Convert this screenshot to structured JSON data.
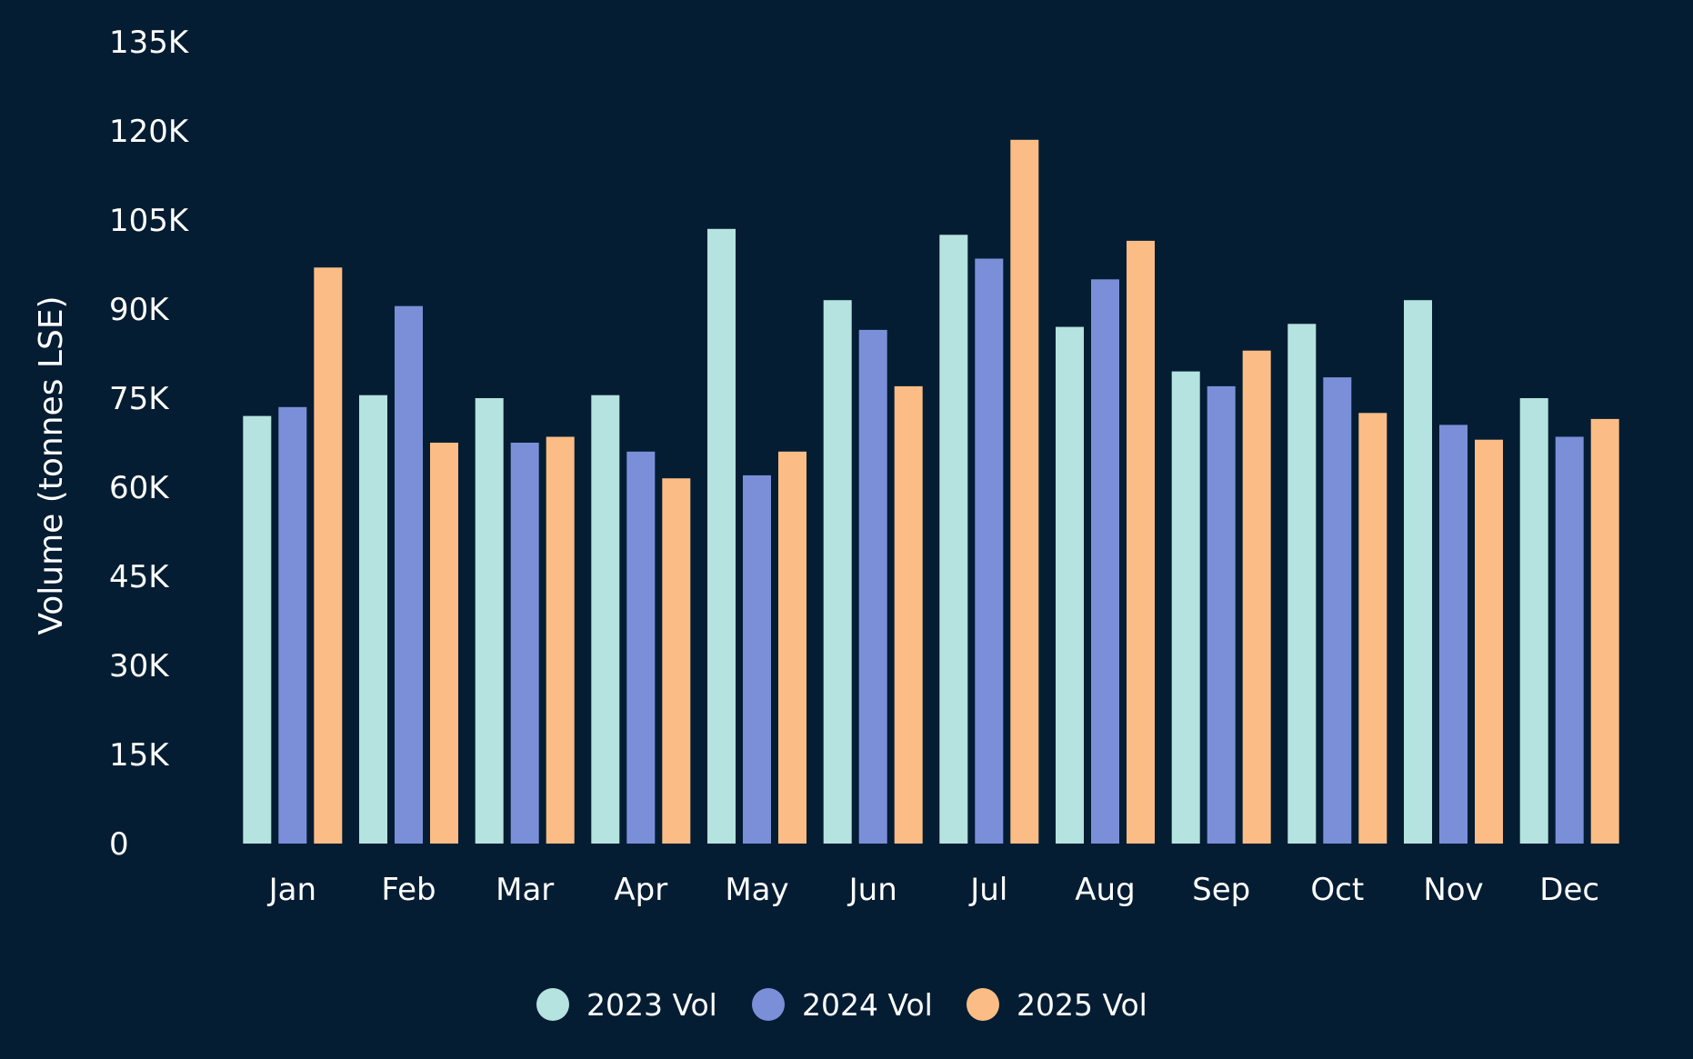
{
  "chart_data": {
    "type": "bar",
    "title": "",
    "xlabel": "",
    "ylabel": "Volume (tonnes LSE)",
    "ylim": [
      0,
      135000
    ],
    "yticks": [
      0,
      15000,
      30000,
      45000,
      60000,
      75000,
      90000,
      105000,
      120000,
      135000
    ],
    "ytick_labels": [
      "0",
      "15K",
      "30K",
      "45K",
      "60K",
      "75K",
      "90K",
      "105K",
      "120K",
      "135K"
    ],
    "categories": [
      "Jan",
      "Feb",
      "Mar",
      "Apr",
      "May",
      "Jun",
      "Jul",
      "Aug",
      "Sep",
      "Oct",
      "Nov",
      "Dec"
    ],
    "grid": false,
    "legend_position": "bottom-center",
    "series": [
      {
        "name": "2023 Vol",
        "color": "#b5e3df",
        "values": [
          72000,
          75500,
          75000,
          75500,
          103500,
          91500,
          102500,
          87000,
          79500,
          87500,
          91500,
          75000
        ]
      },
      {
        "name": "2024 Vol",
        "color": "#7b8fd9",
        "values": [
          73500,
          90500,
          67500,
          66000,
          62000,
          86500,
          98500,
          95000,
          77000,
          78500,
          70500,
          68500
        ]
      },
      {
        "name": "2025 Vol",
        "color": "#fbbd85",
        "values": [
          97000,
          67500,
          68500,
          61500,
          66000,
          77000,
          118500,
          101500,
          83000,
          72500,
          68000,
          71500
        ]
      }
    ]
  }
}
